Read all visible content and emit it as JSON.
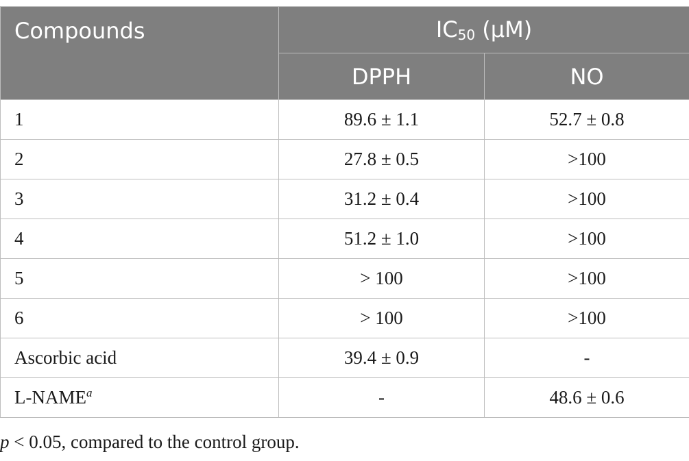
{
  "table": {
    "header": {
      "compounds": "Compounds",
      "ic50_prefix": "IC",
      "ic50_sub": "50",
      "ic50_unit": " (μM)",
      "dpph": "DPPH",
      "no": "NO"
    },
    "rows": [
      {
        "name": "1",
        "mark": "",
        "dpph": "89.6 ± 1.1",
        "no": "52.7 ± 0.8"
      },
      {
        "name": "2",
        "mark": "",
        "dpph": "27.8 ± 0.5",
        "no": ">100"
      },
      {
        "name": "3",
        "mark": "",
        "dpph": "31.2 ± 0.4",
        "no": ">100"
      },
      {
        "name": "4",
        "mark": "",
        "dpph": "51.2 ± 1.0",
        "no": ">100"
      },
      {
        "name": "5",
        "mark": "",
        "dpph": "> 100",
        "no": ">100"
      },
      {
        "name": "6",
        "mark": "",
        "dpph": "> 100",
        "no": ">100"
      },
      {
        "name": "Ascorbic acid",
        "mark": "",
        "dpph": "39.4 ± 0.9",
        "no": "-"
      },
      {
        "name": "L-NAME",
        "mark": "a",
        "dpph": "-",
        "no": "48.6 ± 0.6"
      }
    ]
  },
  "footnote": {
    "p_symbol": "p",
    "text": " < 0.05, compared to the control group."
  },
  "colors": {
    "header_background": "#7f7f7f",
    "header_text": "#ffffff",
    "grid_lines": "#bdbdbd"
  }
}
